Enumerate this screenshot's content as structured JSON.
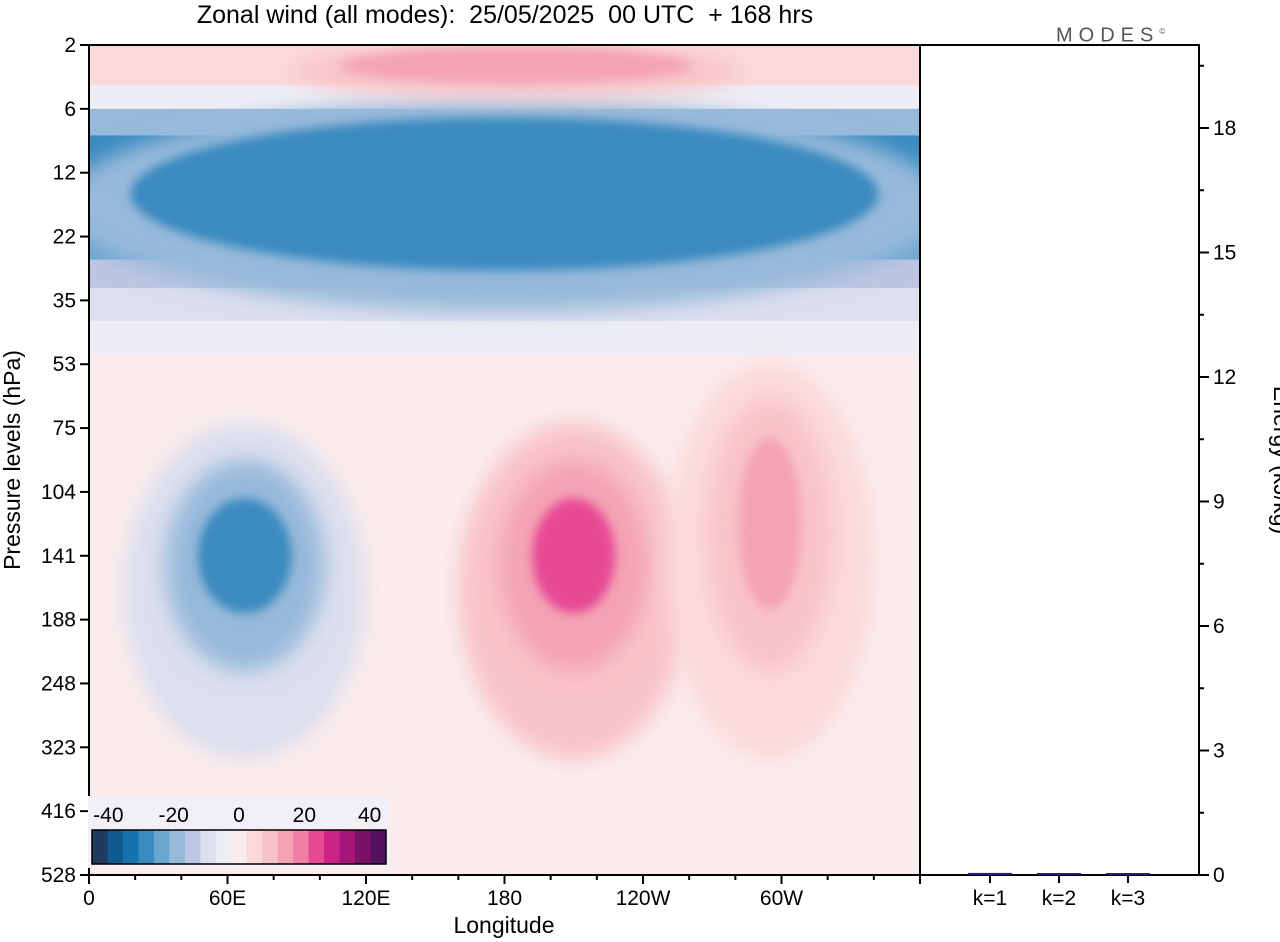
{
  "header": {
    "title": "Zonal wind (all modes):  25/05/2025  00 UTC  + 168 hrs",
    "brand": "MODES",
    "brand_mark": "©"
  },
  "colors": {
    "palette": [
      "#1f3a5f",
      "#0f5a8e",
      "#1572ad",
      "#3a8ac0",
      "#6aa6cf",
      "#97b9da",
      "#bcc6e2",
      "#dcdfee",
      "#eeedf5",
      "#fbecec",
      "#fbd9da",
      "#f8c3c8",
      "#f4a3b4",
      "#ef7fa3",
      "#e74a95",
      "#cc2387",
      "#a4157a",
      "#7a1068",
      "#551060"
    ],
    "panel_bg": "#f3eff6",
    "axis": "#000000"
  },
  "chart_data": [
    {
      "type": "heatmap",
      "title": "Zonal wind (all modes):  25/05/2025  00 UTC  + 168 hrs",
      "xlabel": "Longitude",
      "ylabel": "Pressure levels (hPa)",
      "x_ticks": [
        "0",
        "60E",
        "120E",
        "180",
        "120W",
        "60W"
      ],
      "x_tick_values": [
        0,
        60,
        120,
        180,
        240,
        300
      ],
      "xlim": [
        0,
        360
      ],
      "y_ticks": [
        "2",
        "6",
        "12",
        "22",
        "35",
        "53",
        "75",
        "104",
        "141",
        "188",
        "248",
        "323",
        "416",
        "528"
      ],
      "y_order": "top-to-bottom",
      "colorbar": {
        "labels": [
          "-40",
          "-20",
          "0",
          "20",
          "40"
        ],
        "label_values": [
          -40,
          -20,
          0,
          20,
          40
        ],
        "range": [
          -45,
          45
        ],
        "levels": 18
      },
      "features": [
        {
          "name": "stratospheric easterlies",
          "value_range": [
            -35,
            -20
          ],
          "pressure_hPa": [
            6,
            30
          ],
          "lon_range": [
            0,
            360
          ]
        },
        {
          "name": "upper stratosphere westerlies",
          "value_range": [
            10,
            20
          ],
          "pressure_hPa": [
            2,
            4
          ],
          "lon_range": [
            100,
            270
          ]
        },
        {
          "name": "easterly jet core",
          "value_range": [
            -35,
            -20
          ],
          "pressure_hPa": [
            104,
            188
          ],
          "lon_range": [
            45,
            90
          ]
        },
        {
          "name": "westerly maximum",
          "value_range": [
            20,
            28
          ],
          "pressure_hPa": [
            104,
            188
          ],
          "lon_range": [
            190,
            230
          ]
        },
        {
          "name": "westerly secondary maximum",
          "value_range": [
            12,
            18
          ],
          "pressure_hPa": [
            75,
            188
          ],
          "lon_range": [
            280,
            310
          ]
        }
      ]
    },
    {
      "type": "bar",
      "ylabel": "Energy (kJ/kg)",
      "categories": [
        "k=1",
        "k=2",
        "k=3"
      ],
      "values": [
        0.05,
        0.02,
        0.01
      ],
      "ylim": [
        0,
        20
      ],
      "y_ticks": [
        "0",
        "3",
        "6",
        "9",
        "12",
        "15",
        "18"
      ],
      "y_tick_values": [
        0,
        3,
        6,
        9,
        12,
        15,
        18
      ],
      "bar_color": "#2a1a7a"
    }
  ]
}
